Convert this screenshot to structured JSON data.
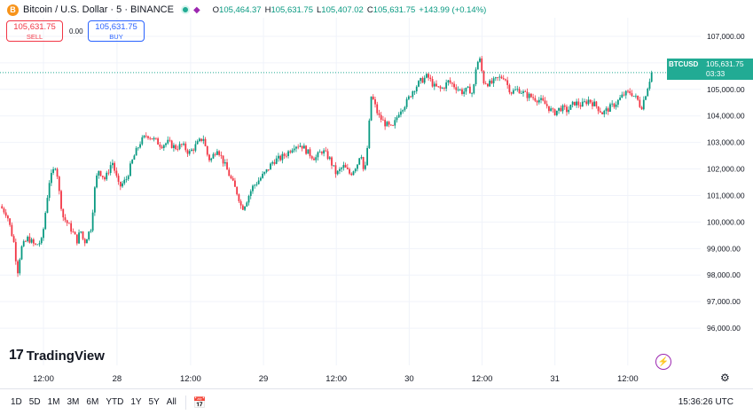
{
  "header": {
    "coin_letter": "B",
    "title": "Bitcoin / U.S. Dollar · 5 · BINANCE",
    "ohlc": [
      {
        "label": "O",
        "value": "105,464.37"
      },
      {
        "label": "H",
        "value": "105,631.75"
      },
      {
        "label": "L",
        "value": "105,407.02"
      },
      {
        "label": "C",
        "value": "105,631.75"
      },
      {
        "label": "",
        "value": "+143.99 (+0.14%)"
      }
    ]
  },
  "trade": {
    "sell_price": "105,631.75",
    "sell_label": "SELL",
    "spread": "0.00",
    "buy_price": "105,631.75",
    "buy_label": "BUY"
  },
  "price_tag": {
    "symbol": "BTCUSD",
    "price": "105,631.75",
    "countdown": "03:33"
  },
  "logo_text": "TradingView",
  "bottom_bar": {
    "ranges": [
      "1D",
      "5D",
      "1M",
      "3M",
      "6M",
      "YTD",
      "1Y",
      "5Y",
      "All"
    ],
    "clock": "15:36:26 UTC"
  },
  "colors": {
    "up": "#089981",
    "down": "#f23645",
    "accent": "#22ab94"
  },
  "chart_data": {
    "type": "candlestick",
    "title": "",
    "y_ticks": [
      "107,000.00",
      "106,000.00",
      "105,000.00",
      "104,000.00",
      "103,000.00",
      "102,000.00",
      "101,000.00",
      "100,000.00",
      "99,000.00",
      "98,000.00",
      "97,000.00",
      "96,000.00"
    ],
    "y_tick_values": [
      107000,
      106000,
      105000,
      104000,
      103000,
      102000,
      101000,
      100000,
      99000,
      98000,
      97000,
      96000
    ],
    "ylim": [
      95000,
      107700
    ],
    "x_labels": [
      "12:00",
      "28",
      "12:00",
      "29",
      "12:00",
      "30",
      "12:00",
      "31",
      "12:00"
    ],
    "x_label_positions_frac": [
      0.062,
      0.167,
      0.272,
      0.376,
      0.48,
      0.584,
      0.688,
      0.792,
      0.896
    ],
    "close_path": [
      [
        0.0,
        100600
      ],
      [
        0.01,
        100300
      ],
      [
        0.02,
        99200
      ],
      [
        0.025,
        98100
      ],
      [
        0.03,
        99000
      ],
      [
        0.04,
        99400
      ],
      [
        0.05,
        99100
      ],
      [
        0.06,
        99300
      ],
      [
        0.07,
        101500
      ],
      [
        0.08,
        102200
      ],
      [
        0.085,
        101000
      ],
      [
        0.09,
        100200
      ],
      [
        0.1,
        99800
      ],
      [
        0.11,
        99300
      ],
      [
        0.115,
        99700
      ],
      [
        0.12,
        99200
      ],
      [
        0.13,
        99800
      ],
      [
        0.135,
        101200
      ],
      [
        0.14,
        102000
      ],
      [
        0.15,
        101600
      ],
      [
        0.16,
        102300
      ],
      [
        0.165,
        101800
      ],
      [
        0.17,
        101300
      ],
      [
        0.18,
        101600
      ],
      [
        0.19,
        102400
      ],
      [
        0.2,
        103000
      ],
      [
        0.21,
        103300
      ],
      [
        0.22,
        103100
      ],
      [
        0.23,
        102900
      ],
      [
        0.24,
        103000
      ],
      [
        0.25,
        102800
      ],
      [
        0.26,
        102900
      ],
      [
        0.27,
        102600
      ],
      [
        0.28,
        102900
      ],
      [
        0.29,
        103200
      ],
      [
        0.295,
        102600
      ],
      [
        0.3,
        102300
      ],
      [
        0.31,
        102800
      ],
      [
        0.32,
        102200
      ],
      [
        0.33,
        101600
      ],
      [
        0.34,
        101000
      ],
      [
        0.345,
        100500
      ],
      [
        0.35,
        100700
      ],
      [
        0.36,
        101300
      ],
      [
        0.37,
        101600
      ],
      [
        0.38,
        101900
      ],
      [
        0.39,
        102300
      ],
      [
        0.4,
        102400
      ],
      [
        0.41,
        102600
      ],
      [
        0.42,
        102900
      ],
      [
        0.43,
        102900
      ],
      [
        0.44,
        102600
      ],
      [
        0.45,
        102400
      ],
      [
        0.46,
        102700
      ],
      [
        0.47,
        102400
      ],
      [
        0.48,
        101800
      ],
      [
        0.49,
        102100
      ],
      [
        0.5,
        101800
      ],
      [
        0.51,
        102200
      ],
      [
        0.515,
        102700
      ],
      [
        0.52,
        101700
      ],
      [
        0.525,
        103000
      ],
      [
        0.53,
        104800
      ],
      [
        0.54,
        104000
      ],
      [
        0.55,
        103700
      ],
      [
        0.56,
        103500
      ],
      [
        0.57,
        104200
      ],
      [
        0.58,
        104500
      ],
      [
        0.59,
        105000
      ],
      [
        0.6,
        105300
      ],
      [
        0.61,
        105500
      ],
      [
        0.62,
        105100
      ],
      [
        0.63,
        105000
      ],
      [
        0.64,
        105300
      ],
      [
        0.65,
        105100
      ],
      [
        0.66,
        104900
      ],
      [
        0.67,
        105000
      ],
      [
        0.675,
        104800
      ],
      [
        0.68,
        106000
      ],
      [
        0.685,
        106100
      ],
      [
        0.69,
        105300
      ],
      [
        0.7,
        105200
      ],
      [
        0.71,
        105400
      ],
      [
        0.72,
        105500
      ],
      [
        0.725,
        105100
      ],
      [
        0.73,
        104900
      ],
      [
        0.74,
        105000
      ],
      [
        0.75,
        104800
      ],
      [
        0.76,
        104700
      ],
      [
        0.77,
        104600
      ],
      [
        0.78,
        104400
      ],
      [
        0.79,
        104100
      ],
      [
        0.8,
        104300
      ],
      [
        0.81,
        104200
      ],
      [
        0.82,
        104500
      ],
      [
        0.83,
        104400
      ],
      [
        0.84,
        104600
      ],
      [
        0.85,
        104400
      ],
      [
        0.86,
        104100
      ],
      [
        0.87,
        104300
      ],
      [
        0.88,
        104500
      ],
      [
        0.89,
        104800
      ],
      [
        0.9,
        104900
      ],
      [
        0.91,
        104600
      ],
      [
        0.915,
        104300
      ],
      [
        0.92,
        104700
      ],
      [
        0.93,
        105631.75
      ]
    ],
    "last_price": 105631.75
  }
}
